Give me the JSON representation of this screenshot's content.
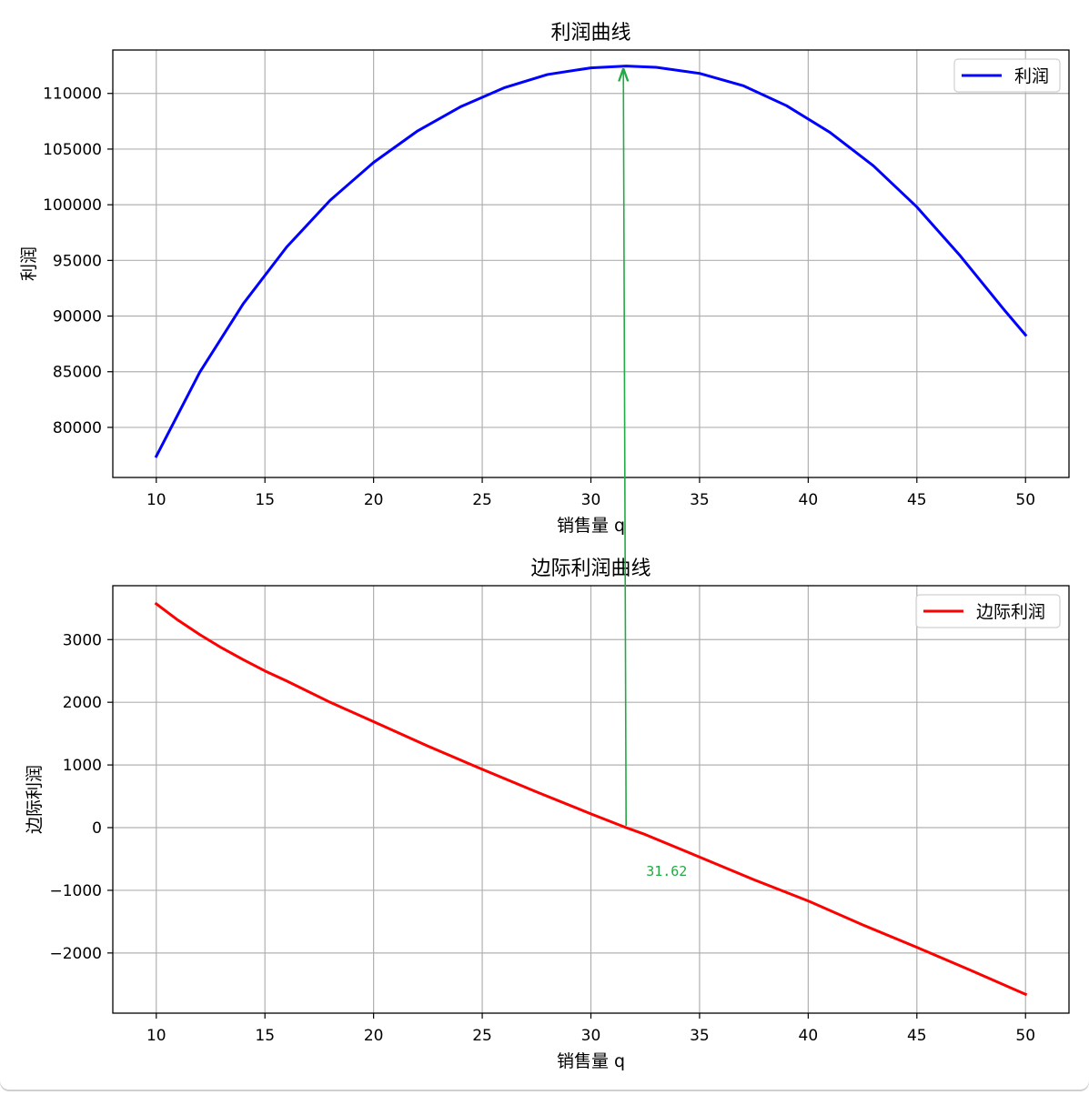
{
  "chart_data": [
    {
      "type": "line",
      "title": "利润曲线",
      "xlabel": "销售量 q",
      "ylabel": "利润",
      "xlim": [
        8,
        52
      ],
      "ylim": [
        75500,
        113900
      ],
      "xticks": [
        10,
        15,
        20,
        25,
        30,
        35,
        40,
        45,
        50
      ],
      "yticks": [
        80000,
        85000,
        90000,
        95000,
        100000,
        105000,
        110000
      ],
      "grid": true,
      "legend": "top-right",
      "series": [
        {
          "name": "利润",
          "color": "#0000ff",
          "x": [
            10,
            12,
            14,
            16,
            18,
            20,
            22,
            24,
            26,
            28,
            30,
            31.62,
            33,
            35,
            37,
            39,
            41,
            43,
            45,
            47,
            49,
            50
          ],
          "y": [
            77400,
            84950,
            91100,
            96200,
            100400,
            103800,
            106600,
            108800,
            110500,
            111700,
            112300,
            112460,
            112350,
            111800,
            110700,
            108900,
            106500,
            103500,
            99800,
            95400,
            90600,
            88300
          ]
        }
      ]
    },
    {
      "type": "line",
      "title": "边际利润曲线",
      "xlabel": "销售量 q",
      "ylabel": "边际利润",
      "xlim": [
        8,
        52
      ],
      "ylim": [
        -2960,
        3860
      ],
      "xticks": [
        10,
        15,
        20,
        25,
        30,
        35,
        40,
        45,
        50
      ],
      "yticks": [
        -2000,
        -1000,
        0,
        1000,
        2000,
        3000
      ],
      "grid": true,
      "legend": "top-right",
      "series": [
        {
          "name": "边际利润",
          "color": "#ff0000",
          "x": [
            10,
            11,
            12,
            13,
            14,
            15,
            16,
            18,
            20,
            22.5,
            25,
            27.5,
            30,
            31.62,
            32.5,
            35,
            37.5,
            40,
            42.5,
            45,
            47.5,
            50
          ],
          "y": [
            3570,
            3310,
            3080,
            2870,
            2680,
            2500,
            2340,
            2000,
            1690,
            1300,
            930,
            570,
            220,
            0,
            -110,
            -470,
            -830,
            -1170,
            -1550,
            -1910,
            -2280,
            -2660
          ]
        }
      ],
      "annotation": {
        "text": "31.62",
        "x": 31.62,
        "y": 0,
        "color": "#22aa44"
      }
    }
  ]
}
